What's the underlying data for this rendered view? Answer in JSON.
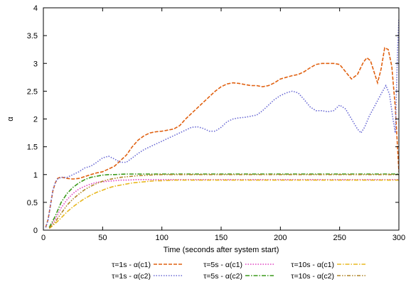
{
  "chart_data": {
    "type": "line",
    "title": "",
    "xlabel": "Time (seconds after system start)",
    "ylabel": "α",
    "xlim": [
      0,
      300
    ],
    "ylim": [
      0,
      4
    ],
    "xticks": [
      0,
      50,
      100,
      150,
      200,
      250,
      300
    ],
    "yticks": [
      0,
      0.5,
      1,
      1.5,
      2,
      2.5,
      3,
      3.5,
      4
    ],
    "ytick_labels": [
      "0",
      "0.5",
      "1",
      "1.5",
      "2",
      "2.5",
      "3",
      "3.5",
      "4"
    ],
    "grid": false,
    "legend_position": "bottom",
    "series": [
      {
        "name": "τ=1s - α(c1)",
        "color": "#e06010",
        "style": "dashed",
        "points": [
          [
            2,
            0.05
          ],
          [
            4,
            0.2
          ],
          [
            6,
            0.45
          ],
          [
            8,
            0.7
          ],
          [
            10,
            0.85
          ],
          [
            12,
            0.93
          ],
          [
            14,
            0.95
          ],
          [
            16,
            0.95
          ],
          [
            20,
            0.93
          ],
          [
            25,
            0.92
          ],
          [
            30,
            0.93
          ],
          [
            40,
            1.0
          ],
          [
            45,
            1.03
          ],
          [
            50,
            1.05
          ],
          [
            55,
            1.1
          ],
          [
            60,
            1.15
          ],
          [
            65,
            1.25
          ],
          [
            70,
            1.35
          ],
          [
            75,
            1.5
          ],
          [
            80,
            1.62
          ],
          [
            85,
            1.7
          ],
          [
            90,
            1.75
          ],
          [
            95,
            1.77
          ],
          [
            100,
            1.78
          ],
          [
            105,
            1.8
          ],
          [
            110,
            1.82
          ],
          [
            115,
            1.88
          ],
          [
            120,
            2.0
          ],
          [
            125,
            2.1
          ],
          [
            130,
            2.2
          ],
          [
            135,
            2.3
          ],
          [
            140,
            2.4
          ],
          [
            145,
            2.5
          ],
          [
            150,
            2.58
          ],
          [
            155,
            2.63
          ],
          [
            160,
            2.65
          ],
          [
            165,
            2.64
          ],
          [
            170,
            2.62
          ],
          [
            175,
            2.6
          ],
          [
            180,
            2.6
          ],
          [
            185,
            2.58
          ],
          [
            190,
            2.6
          ],
          [
            195,
            2.65
          ],
          [
            200,
            2.72
          ],
          [
            205,
            2.75
          ],
          [
            210,
            2.78
          ],
          [
            215,
            2.8
          ],
          [
            220,
            2.85
          ],
          [
            225,
            2.92
          ],
          [
            230,
            2.98
          ],
          [
            235,
            3.0
          ],
          [
            240,
            3.0
          ],
          [
            245,
            3.0
          ],
          [
            250,
            2.98
          ],
          [
            255,
            2.85
          ],
          [
            260,
            2.72
          ],
          [
            265,
            2.8
          ],
          [
            270,
            3.02
          ],
          [
            273,
            3.1
          ],
          [
            276,
            3.05
          ],
          [
            279,
            2.85
          ],
          [
            282,
            2.65
          ],
          [
            285,
            2.9
          ],
          [
            288,
            3.28
          ],
          [
            291,
            3.25
          ],
          [
            294,
            2.95
          ],
          [
            297,
            2.2
          ],
          [
            300,
            1.05
          ]
        ]
      },
      {
        "name": "τ=1s - α(c2)",
        "color": "#6a6ad4",
        "style": "dotted",
        "points": [
          [
            2,
            0.05
          ],
          [
            4,
            0.18
          ],
          [
            6,
            0.45
          ],
          [
            8,
            0.72
          ],
          [
            10,
            0.85
          ],
          [
            12,
            0.92
          ],
          [
            15,
            0.95
          ],
          [
            20,
            0.95
          ],
          [
            25,
            1.0
          ],
          [
            30,
            1.05
          ],
          [
            35,
            1.12
          ],
          [
            40,
            1.15
          ],
          [
            45,
            1.22
          ],
          [
            50,
            1.3
          ],
          [
            55,
            1.33
          ],
          [
            60,
            1.28
          ],
          [
            65,
            1.22
          ],
          [
            70,
            1.22
          ],
          [
            75,
            1.3
          ],
          [
            80,
            1.38
          ],
          [
            85,
            1.45
          ],
          [
            90,
            1.5
          ],
          [
            95,
            1.55
          ],
          [
            100,
            1.6
          ],
          [
            105,
            1.65
          ],
          [
            110,
            1.7
          ],
          [
            115,
            1.75
          ],
          [
            120,
            1.8
          ],
          [
            125,
            1.85
          ],
          [
            130,
            1.86
          ],
          [
            135,
            1.83
          ],
          [
            140,
            1.78
          ],
          [
            145,
            1.78
          ],
          [
            150,
            1.85
          ],
          [
            155,
            1.95
          ],
          [
            160,
            2.0
          ],
          [
            165,
            2.02
          ],
          [
            170,
            2.03
          ],
          [
            175,
            2.05
          ],
          [
            180,
            2.07
          ],
          [
            185,
            2.15
          ],
          [
            190,
            2.25
          ],
          [
            195,
            2.35
          ],
          [
            200,
            2.42
          ],
          [
            205,
            2.47
          ],
          [
            210,
            2.5
          ],
          [
            215,
            2.47
          ],
          [
            220,
            2.35
          ],
          [
            225,
            2.22
          ],
          [
            230,
            2.15
          ],
          [
            235,
            2.15
          ],
          [
            240,
            2.13
          ],
          [
            245,
            2.15
          ],
          [
            250,
            2.25
          ],
          [
            255,
            2.18
          ],
          [
            260,
            2.0
          ],
          [
            265,
            1.82
          ],
          [
            268,
            1.75
          ],
          [
            271,
            1.85
          ],
          [
            275,
            2.05
          ],
          [
            280,
            2.25
          ],
          [
            285,
            2.45
          ],
          [
            289,
            2.6
          ],
          [
            292,
            2.45
          ],
          [
            295,
            2.0
          ],
          [
            297,
            1.75
          ],
          [
            299,
            3.3
          ],
          [
            300,
            3.8
          ]
        ]
      },
      {
        "name": "τ=5s - α(c1)",
        "color": "#e040c0",
        "style": "dotted",
        "points": [
          [
            5,
            0.05
          ],
          [
            10,
            0.2
          ],
          [
            15,
            0.4
          ],
          [
            20,
            0.55
          ],
          [
            25,
            0.66
          ],
          [
            30,
            0.74
          ],
          [
            35,
            0.79
          ],
          [
            40,
            0.83
          ],
          [
            45,
            0.86
          ],
          [
            50,
            0.87
          ],
          [
            55,
            0.88
          ],
          [
            60,
            0.89
          ],
          [
            65,
            0.9
          ],
          [
            70,
            0.9
          ],
          [
            80,
            0.91
          ],
          [
            90,
            0.91
          ],
          [
            100,
            0.91
          ],
          [
            150,
            0.91
          ],
          [
            200,
            0.91
          ],
          [
            250,
            0.91
          ],
          [
            300,
            0.91
          ]
        ]
      },
      {
        "name": "τ=5s - α(c2)",
        "color": "#3a9a1a",
        "style": "dashdot",
        "points": [
          [
            5,
            0.05
          ],
          [
            10,
            0.25
          ],
          [
            15,
            0.5
          ],
          [
            20,
            0.66
          ],
          [
            25,
            0.77
          ],
          [
            30,
            0.85
          ],
          [
            35,
            0.91
          ],
          [
            40,
            0.95
          ],
          [
            45,
            0.97
          ],
          [
            50,
            0.99
          ],
          [
            55,
            1.0
          ],
          [
            60,
            1.0
          ],
          [
            70,
            1.01
          ],
          [
            80,
            1.01
          ],
          [
            100,
            1.01
          ],
          [
            150,
            1.01
          ],
          [
            200,
            1.01
          ],
          [
            250,
            1.01
          ],
          [
            300,
            1.01
          ]
        ]
      },
      {
        "name": "τ=10s - α(c1)",
        "color": "#e8b820",
        "style": "dashdot",
        "points": [
          [
            5,
            0.03
          ],
          [
            10,
            0.12
          ],
          [
            15,
            0.22
          ],
          [
            20,
            0.33
          ],
          [
            25,
            0.42
          ],
          [
            30,
            0.5
          ],
          [
            35,
            0.57
          ],
          [
            40,
            0.63
          ],
          [
            45,
            0.68
          ],
          [
            50,
            0.72
          ],
          [
            55,
            0.76
          ],
          [
            60,
            0.79
          ],
          [
            65,
            0.81
          ],
          [
            70,
            0.83
          ],
          [
            75,
            0.85
          ],
          [
            80,
            0.86
          ],
          [
            85,
            0.87
          ],
          [
            90,
            0.88
          ],
          [
            95,
            0.89
          ],
          [
            100,
            0.89
          ],
          [
            110,
            0.9
          ],
          [
            150,
            0.9
          ],
          [
            200,
            0.9
          ],
          [
            250,
            0.9
          ],
          [
            300,
            0.9
          ]
        ]
      },
      {
        "name": "τ=10s - α(c2)",
        "color": "#b0862a",
        "style": "dashdotdot",
        "points": [
          [
            5,
            0.04
          ],
          [
            10,
            0.15
          ],
          [
            15,
            0.3
          ],
          [
            20,
            0.45
          ],
          [
            25,
            0.56
          ],
          [
            30,
            0.65
          ],
          [
            35,
            0.73
          ],
          [
            40,
            0.79
          ],
          [
            45,
            0.84
          ],
          [
            50,
            0.88
          ],
          [
            55,
            0.91
          ],
          [
            60,
            0.93
          ],
          [
            65,
            0.95
          ],
          [
            70,
            0.96
          ],
          [
            80,
            0.98
          ],
          [
            90,
            0.99
          ],
          [
            100,
            1.0
          ],
          [
            150,
            1.0
          ],
          [
            200,
            1.0
          ],
          [
            250,
            1.0
          ],
          [
            300,
            1.0
          ]
        ]
      }
    ]
  }
}
